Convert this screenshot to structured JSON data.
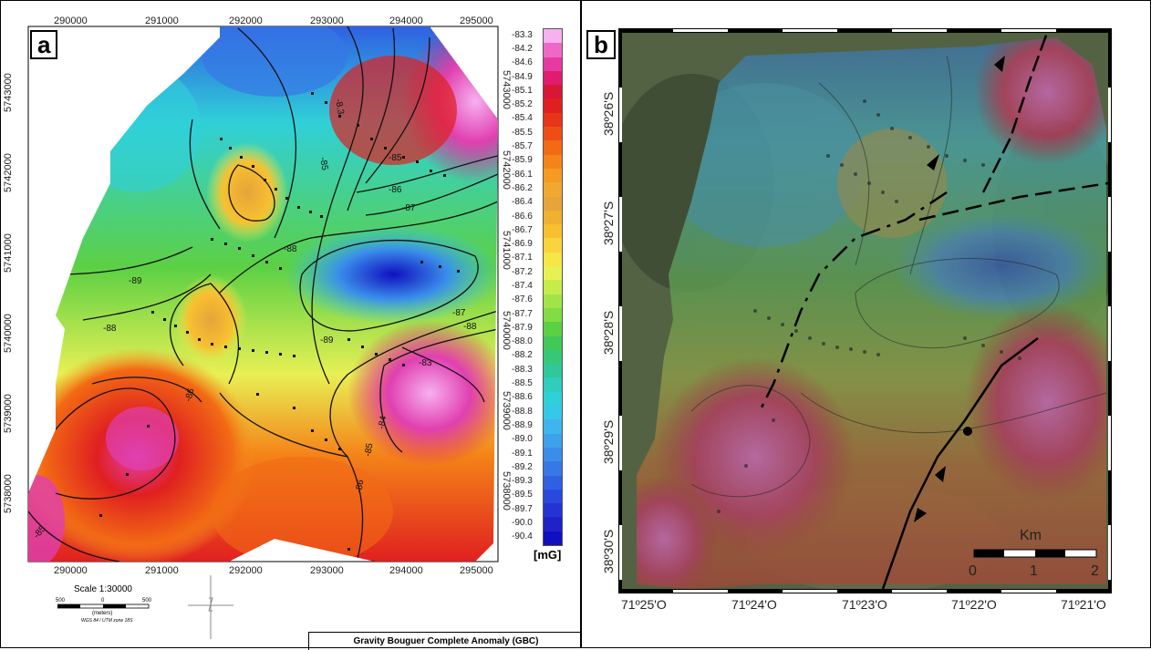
{
  "panel_a": {
    "label": "a",
    "x_ticks": [
      "290000",
      "291000",
      "292000",
      "293000",
      "294000",
      "295000"
    ],
    "y_ticks": [
      "5743000",
      "5742000",
      "5741000",
      "5740000",
      "5739000",
      "5738000"
    ],
    "colorbar_values": [
      "-83.3",
      "-84.2",
      "-84.6",
      "-84.9",
      "-85.1",
      "-85.2",
      "-85.4",
      "-85.5",
      "-85.7",
      "-85.9",
      "-86.1",
      "-86.2",
      "-86.4",
      "-86.6",
      "-86.7",
      "-86.9",
      "-87.1",
      "-87.2",
      "-87.4",
      "-87.6",
      "-87.7",
      "-87.9",
      "-88.0",
      "-88.2",
      "-88.3",
      "-88.5",
      "-88.6",
      "-88.8",
      "-88.9",
      "-89.0",
      "-89.1",
      "-89.2",
      "-89.3",
      "-89.5",
      "-89.7",
      "-90.0",
      "-90.4"
    ],
    "colorbar_colors": [
      "#f7b0f0",
      "#ef68c8",
      "#e63aa0",
      "#e01c70",
      "#d81636",
      "#e02020",
      "#e83418",
      "#ee4e16",
      "#f26a14",
      "#f48418",
      "#f59a22",
      "#f0a830",
      "#e6a43a",
      "#f0b030",
      "#f8c030",
      "#fad43c",
      "#f6e646",
      "#e8f054",
      "#c6ec4c",
      "#a2e448",
      "#82dc44",
      "#5cd044",
      "#40c858",
      "#36c878",
      "#30c898",
      "#30ccbc",
      "#30d0d8",
      "#36c8e8",
      "#3eb6ec",
      "#3ea2ea",
      "#3a8eea",
      "#3678e6",
      "#3060e2",
      "#2a48dc",
      "#2434d4",
      "#1e22c8",
      "#1010c0"
    ],
    "unit": "[mG]",
    "scale": {
      "text": "Scale 1:30000",
      "ticks": [
        "500",
        "0",
        "500"
      ],
      "unit": "(meters)",
      "projection": "WGS 84 / UTM zone 18S"
    },
    "title": "Gravity Bouguer Complete Anomaly (GBC)",
    "contours": [
      "-83",
      "-84",
      "-85",
      "-86",
      "-86",
      "-86",
      "-87",
      "-87",
      "-88",
      "-88",
      "-88",
      "-88",
      "-88",
      "-89",
      "-89",
      "-89",
      "-85"
    ]
  },
  "panel_b": {
    "label": "b",
    "x_ticks": [
      "71º25'O",
      "71º24'O",
      "71º23'O",
      "71º22'O",
      "71º21'O"
    ],
    "y_ticks": [
      "38º26'S",
      "38º27'S",
      "38º28'S",
      "38º29'S",
      "38º30'S"
    ],
    "scalebar": {
      "unit": "Km",
      "ticks": [
        "0",
        "1",
        "2"
      ]
    }
  }
}
